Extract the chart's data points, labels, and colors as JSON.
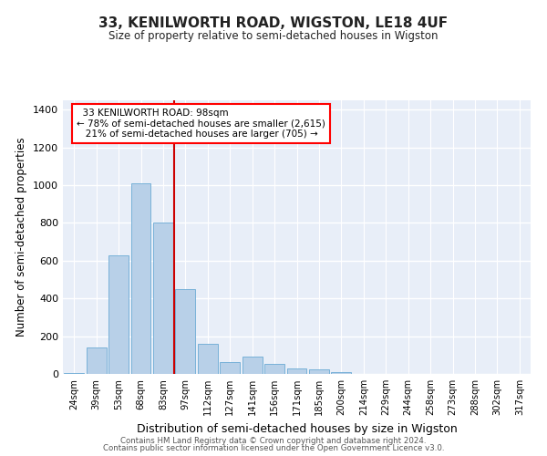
{
  "title": "33, KENILWORTH ROAD, WIGSTON, LE18 4UF",
  "subtitle": "Size of property relative to semi-detached houses in Wigston",
  "xlabel": "Distribution of semi-detached houses by size in Wigston",
  "ylabel": "Number of semi-detached properties",
  "categories": [
    "24sqm",
    "39sqm",
    "53sqm",
    "68sqm",
    "83sqm",
    "97sqm",
    "112sqm",
    "127sqm",
    "141sqm",
    "156sqm",
    "171sqm",
    "185sqm",
    "200sqm",
    "214sqm",
    "229sqm",
    "244sqm",
    "258sqm",
    "273sqm",
    "288sqm",
    "302sqm",
    "317sqm"
  ],
  "values": [
    5,
    140,
    630,
    1010,
    800,
    450,
    160,
    65,
    90,
    55,
    30,
    25,
    10,
    0,
    0,
    0,
    0,
    0,
    0,
    0,
    0
  ],
  "bar_color": "#b8d0e8",
  "bar_edge_color": "#6aaad4",
  "vline_color": "#cc0000",
  "ylim": [
    0,
    1450
  ],
  "yticks": [
    0,
    200,
    400,
    600,
    800,
    1000,
    1200,
    1400
  ],
  "background_color": "#e8eef8",
  "grid_color": "#ffffff",
  "property_label": "33 KENILWORTH ROAD: 98sqm",
  "pct_smaller": 78,
  "pct_smaller_count": 2615,
  "pct_larger": 21,
  "pct_larger_count": 705,
  "footer_line1": "Contains HM Land Registry data © Crown copyright and database right 2024.",
  "footer_line2": "Contains public sector information licensed under the Open Government Licence v3.0."
}
